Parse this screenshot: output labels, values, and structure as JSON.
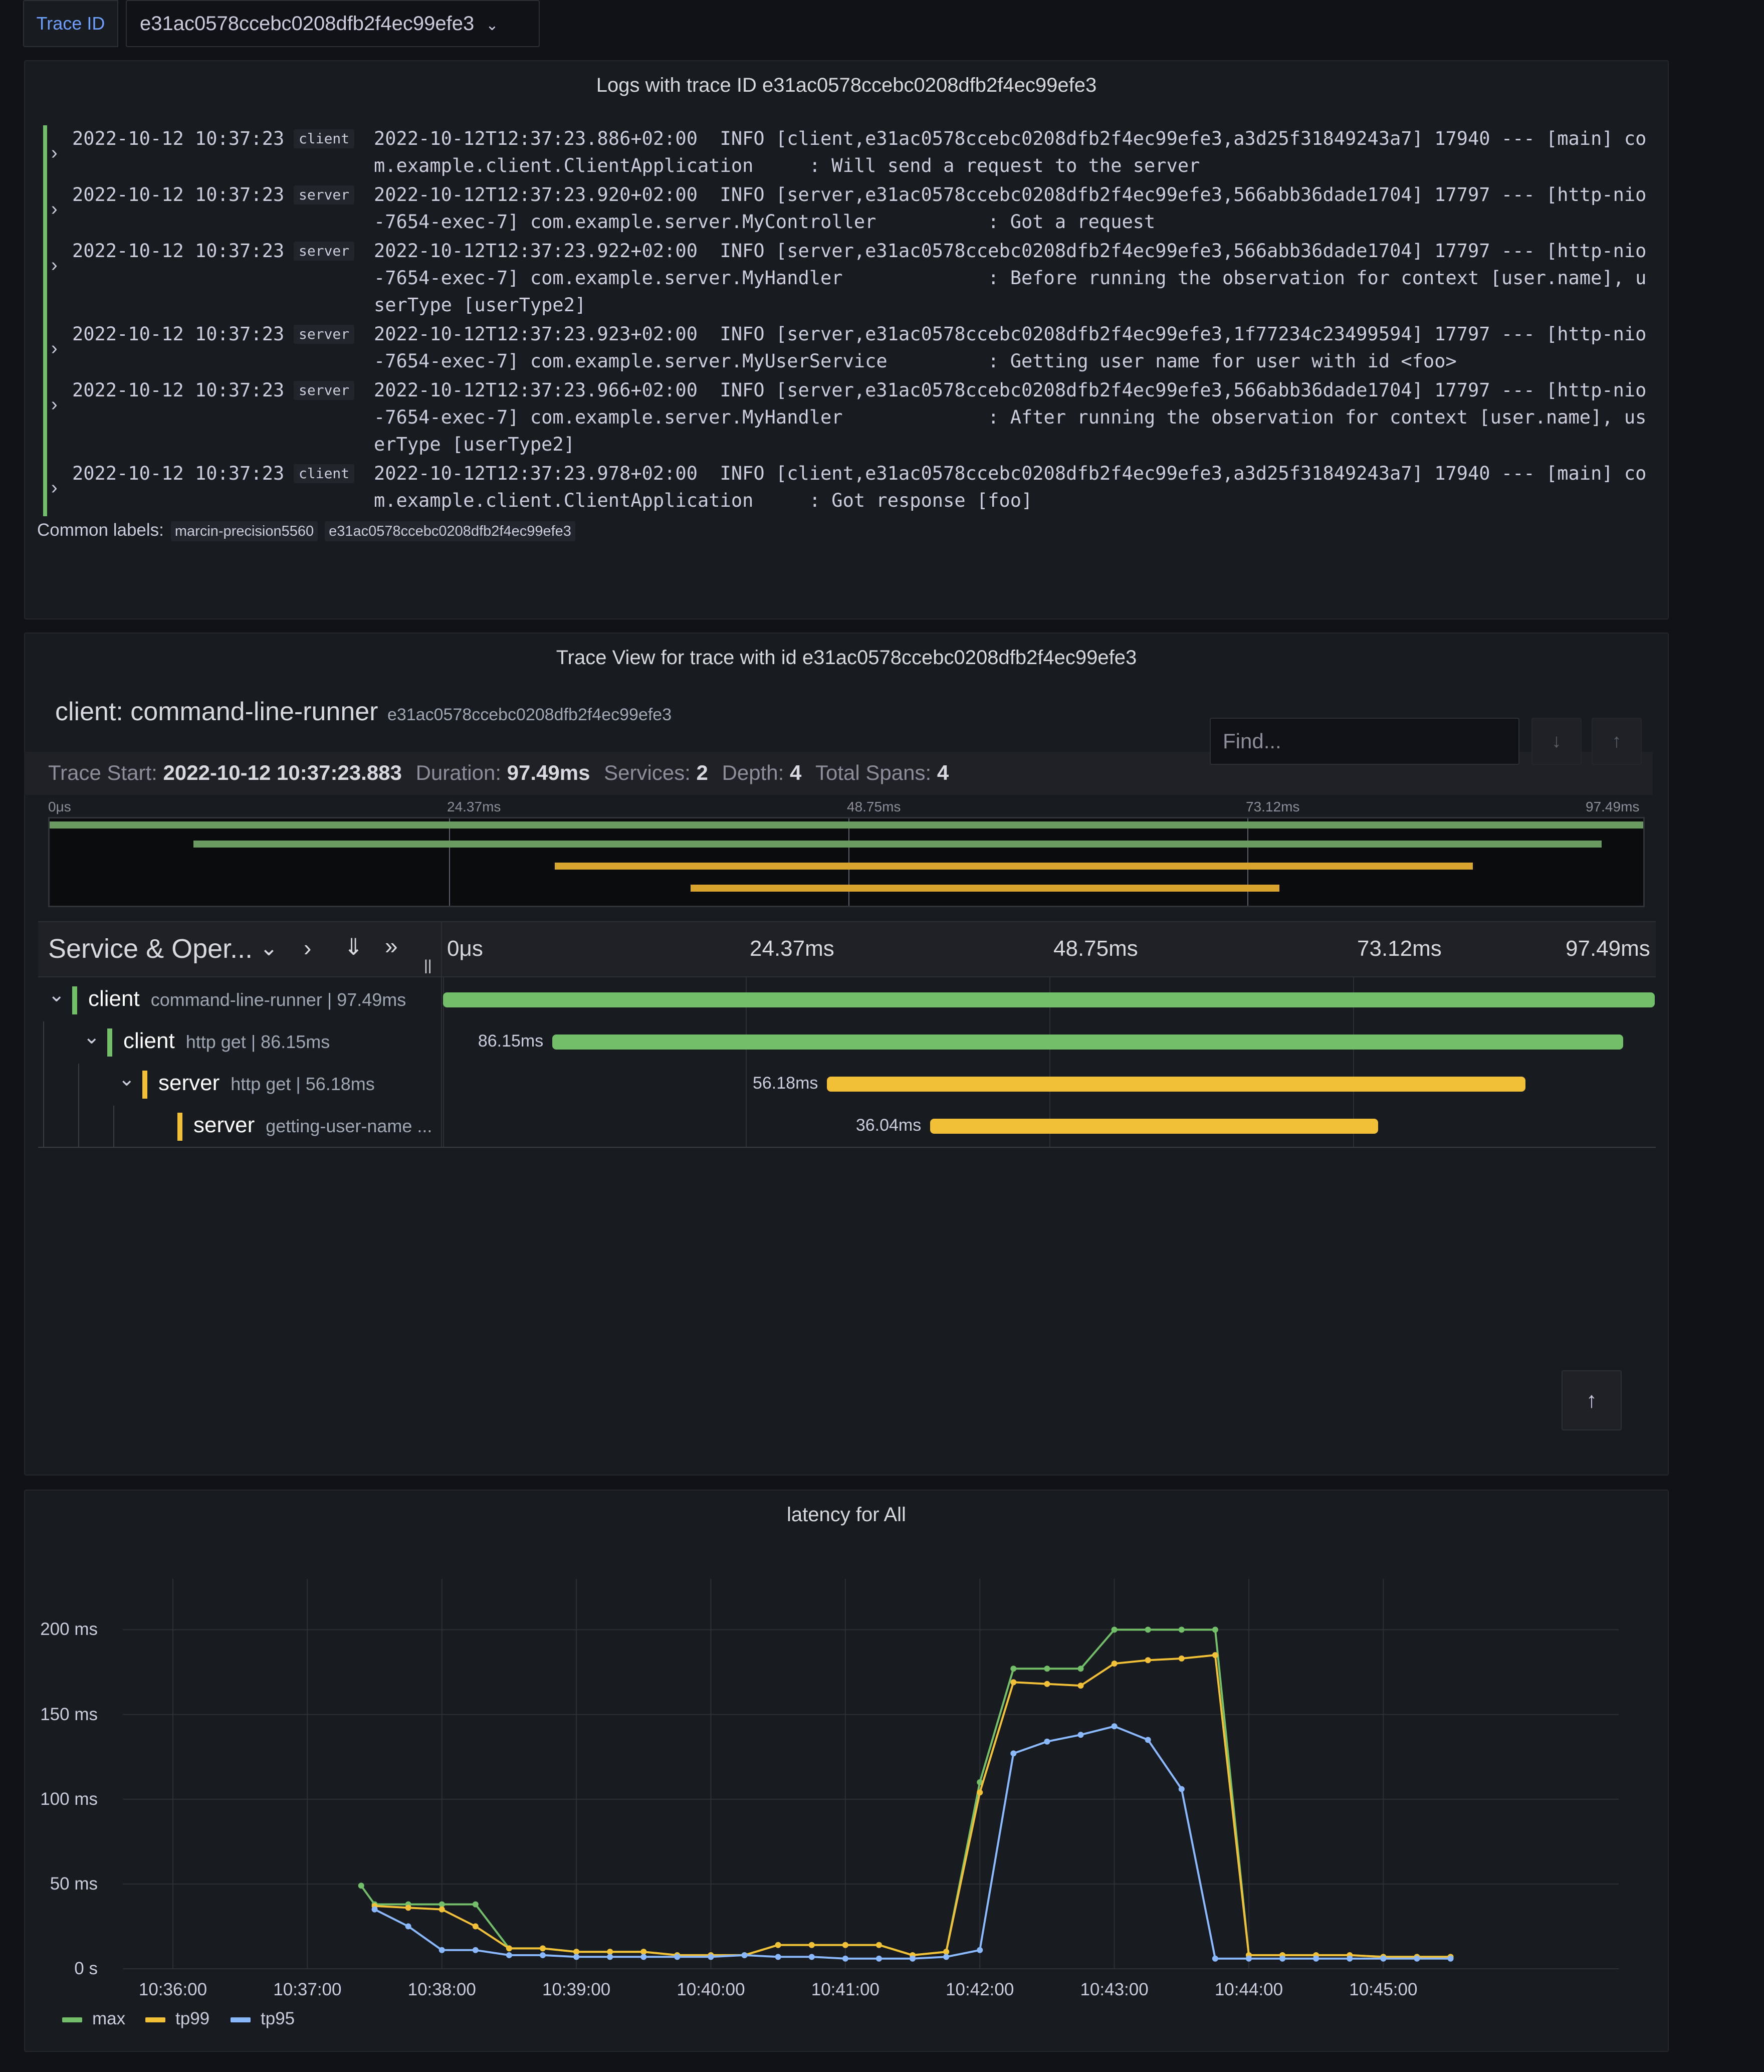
{
  "variable": {
    "label": "Trace ID",
    "value": "e31ac0578ccebc0208dfb2f4ec99efe3"
  },
  "logs_panel": {
    "title": "Logs with trace ID e31ac0578ccebc0208dfb2f4ec99efe3",
    "rows": [
      {
        "time": "2022-10-12 10:37:23",
        "label": "client",
        "line1": "2022-10-12T12:37:23.886+02:00  INFO [client,e31ac0578ccebc0208dfb2f4ec99efe3,a3d25f31849243a7] 17940 --- [main] co",
        "line2": "m.example.client.ClientApplication     : Will send a request to the server",
        "line3": ""
      },
      {
        "time": "2022-10-12 10:37:23",
        "label": "server",
        "line1": "2022-10-12T12:37:23.920+02:00  INFO [server,e31ac0578ccebc0208dfb2f4ec99efe3,566abb36dade1704] 17797 --- [http-nio",
        "line2": "-7654-exec-7] com.example.server.MyController          : Got a request",
        "line3": ""
      },
      {
        "time": "2022-10-12 10:37:23",
        "label": "server",
        "line1": "2022-10-12T12:37:23.922+02:00  INFO [server,e31ac0578ccebc0208dfb2f4ec99efe3,566abb36dade1704] 17797 --- [http-nio",
        "line2": "-7654-exec-7] com.example.server.MyHandler             : Before running the observation for context [user.name], u",
        "line3": "serType [userType2]"
      },
      {
        "time": "2022-10-12 10:37:23",
        "label": "server",
        "line1": "2022-10-12T12:37:23.923+02:00  INFO [server,e31ac0578ccebc0208dfb2f4ec99efe3,1f77234c23499594] 17797 --- [http-nio",
        "line2": "-7654-exec-7] com.example.server.MyUserService         : Getting user name for user with id <foo>",
        "line3": ""
      },
      {
        "time": "2022-10-12 10:37:23",
        "label": "server",
        "line1": "2022-10-12T12:37:23.966+02:00  INFO [server,e31ac0578ccebc0208dfb2f4ec99efe3,566abb36dade1704] 17797 --- [http-nio",
        "line2": "-7654-exec-7] com.example.server.MyHandler             : After running the observation for context [user.name], us",
        "line3": "erType [userType2]"
      },
      {
        "time": "2022-10-12 10:37:23",
        "label": "client",
        "line1": "2022-10-12T12:37:23.978+02:00  INFO [client,e31ac0578ccebc0208dfb2f4ec99efe3,a3d25f31849243a7] 17940 --- [main] co",
        "line2": "m.example.client.ClientApplication     : Got response [foo]",
        "line3": ""
      }
    ],
    "common_labels_title": "Common labels:",
    "common_labels": [
      "marcin-precision5560",
      "e31ac0578ccebc0208dfb2f4ec99efe3"
    ]
  },
  "trace_panel": {
    "title": "Trace View for trace with id e31ac0578ccebc0208dfb2f4ec99efe3",
    "root_name": "client: command-line-runner",
    "trace_id": "e31ac0578ccebc0208dfb2f4ec99efe3",
    "find_placeholder": "Find...",
    "meta": {
      "start_k": "Trace Start:",
      "start_v": "2022-10-12 10:37:23.883",
      "duration_k": "Duration:",
      "duration_v": "97.49ms",
      "services_k": "Services:",
      "services_v": "2",
      "depth_k": "Depth:",
      "depth_v": "4",
      "spans_k": "Total Spans:",
      "spans_v": "4"
    },
    "ticks": [
      "0μs",
      "24.37ms",
      "48.75ms",
      "73.12ms",
      "97.49ms"
    ],
    "header_label": "Service & Oper...",
    "total_ms": 97.49,
    "spans": [
      {
        "service": "client",
        "operation": "command-line-runner | 97.49ms",
        "duration_label": "",
        "start_ms": 0,
        "duration_ms": 97.49,
        "color": "#73bf69",
        "depth": 0
      },
      {
        "service": "client",
        "operation": "http get | 86.15ms",
        "duration_label": "86.15ms",
        "start_ms": 8.8,
        "duration_ms": 86.15,
        "color": "#73bf69",
        "depth": 1
      },
      {
        "service": "server",
        "operation": "http get | 56.18ms",
        "duration_label": "56.18ms",
        "start_ms": 30.9,
        "duration_ms": 56.18,
        "color": "#f2c037",
        "depth": 2
      },
      {
        "service": "server",
        "operation": "getting-user-name ...",
        "duration_label": "36.04ms",
        "start_ms": 39.2,
        "duration_ms": 36.04,
        "color": "#f2c037",
        "depth": 3
      }
    ]
  },
  "latency_panel": {
    "title": "latency for All"
  },
  "chart_data": {
    "type": "line",
    "title": "latency for All",
    "y_ticks": [
      "0 s",
      "50 ms",
      "100 ms",
      "150 ms",
      "200 ms"
    ],
    "x_ticks": [
      "10:36:00",
      "10:37:00",
      "10:38:00",
      "10:39:00",
      "10:40:00",
      "10:41:00",
      "10:42:00",
      "10:43:00",
      "10:44:00",
      "10:45:00"
    ],
    "ylim": [
      0,
      200
    ],
    "x_unit": "minutes since 10:36:00",
    "grid": true,
    "legend_position": "bottom-left",
    "series": [
      {
        "name": "max",
        "color": "#73bf69",
        "points": [
          [
            1.4,
            49
          ],
          [
            1.5,
            38
          ],
          [
            1.75,
            38
          ],
          [
            2.0,
            38
          ],
          [
            2.25,
            38
          ],
          [
            2.5,
            12
          ],
          [
            2.75,
            12
          ],
          [
            3.0,
            10
          ],
          [
            3.25,
            10
          ],
          [
            3.5,
            10
          ],
          [
            3.75,
            8
          ],
          [
            4.0,
            8
          ],
          [
            4.25,
            8
          ],
          [
            4.5,
            14
          ],
          [
            4.75,
            14
          ],
          [
            5.0,
            14
          ],
          [
            5.25,
            14
          ],
          [
            5.5,
            8
          ],
          [
            5.75,
            10
          ],
          [
            6.0,
            110
          ],
          [
            6.25,
            177
          ],
          [
            6.5,
            177
          ],
          [
            6.75,
            177
          ],
          [
            7.0,
            200
          ],
          [
            7.25,
            200
          ],
          [
            7.5,
            200
          ],
          [
            7.75,
            200
          ],
          [
            8.0,
            8
          ],
          [
            8.25,
            8
          ],
          [
            8.5,
            8
          ],
          [
            8.75,
            8
          ],
          [
            9.0,
            7
          ],
          [
            9.25,
            7
          ],
          [
            9.5,
            7
          ]
        ]
      },
      {
        "name": "tp99",
        "color": "#f2c037",
        "points": [
          [
            1.5,
            37
          ],
          [
            1.75,
            36
          ],
          [
            2.0,
            35
          ],
          [
            2.25,
            25
          ],
          [
            2.5,
            12
          ],
          [
            2.75,
            12
          ],
          [
            3.0,
            10
          ],
          [
            3.25,
            10
          ],
          [
            3.5,
            10
          ],
          [
            3.75,
            8
          ],
          [
            4.0,
            8
          ],
          [
            4.25,
            8
          ],
          [
            4.5,
            14
          ],
          [
            4.75,
            14
          ],
          [
            5.0,
            14
          ],
          [
            5.25,
            14
          ],
          [
            5.5,
            8
          ],
          [
            5.75,
            10
          ],
          [
            6.0,
            104
          ],
          [
            6.25,
            169
          ],
          [
            6.5,
            168
          ],
          [
            6.75,
            167
          ],
          [
            7.0,
            180
          ],
          [
            7.25,
            182
          ],
          [
            7.5,
            183
          ],
          [
            7.75,
            185
          ],
          [
            8.0,
            8
          ],
          [
            8.25,
            8
          ],
          [
            8.5,
            8
          ],
          [
            8.75,
            8
          ],
          [
            9.0,
            7
          ],
          [
            9.25,
            7
          ],
          [
            9.5,
            7
          ]
        ]
      },
      {
        "name": "tp95",
        "color": "#8ab8ff",
        "points": [
          [
            1.5,
            35
          ],
          [
            1.75,
            25
          ],
          [
            2.0,
            11
          ],
          [
            2.25,
            11
          ],
          [
            2.5,
            8
          ],
          [
            2.75,
            8
          ],
          [
            3.0,
            7
          ],
          [
            3.25,
            7
          ],
          [
            3.5,
            7
          ],
          [
            3.75,
            7
          ],
          [
            4.0,
            7
          ],
          [
            4.25,
            8
          ],
          [
            4.5,
            7
          ],
          [
            4.75,
            7
          ],
          [
            5.0,
            6
          ],
          [
            5.25,
            6
          ],
          [
            5.5,
            6
          ],
          [
            5.75,
            7
          ],
          [
            6.0,
            11
          ],
          [
            6.25,
            127
          ],
          [
            6.5,
            134
          ],
          [
            6.75,
            138
          ],
          [
            7.0,
            143
          ],
          [
            7.25,
            135
          ],
          [
            7.5,
            106
          ],
          [
            7.75,
            6
          ],
          [
            8.0,
            6
          ],
          [
            8.25,
            6
          ],
          [
            8.5,
            6
          ],
          [
            8.75,
            6
          ],
          [
            9.0,
            6
          ],
          [
            9.25,
            6
          ],
          [
            9.5,
            6
          ]
        ]
      }
    ]
  }
}
